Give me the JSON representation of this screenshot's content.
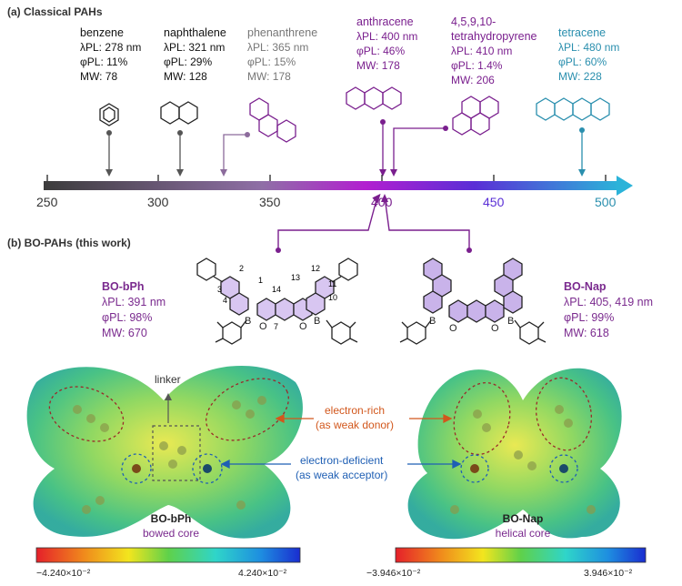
{
  "section_a": {
    "title": "(a) Classical PAHs"
  },
  "section_b": {
    "title": "(b) BO-PAHs (this work)"
  },
  "pahs": [
    {
      "name": "benzene",
      "pl": "λPL: 278 nm",
      "phi": "φPL: 11%",
      "mw": "MW: 78",
      "color": "#111111"
    },
    {
      "name": "naphthalene",
      "pl": "λPL: 321 nm",
      "phi": "φPL: 29%",
      "mw": "MW: 128",
      "color": "#111111"
    },
    {
      "name": "phenanthrene",
      "pl": "λPL: 365 nm",
      "phi": "φPL: 15%",
      "mw": "MW: 178",
      "color": "#777777"
    },
    {
      "name": "anthracene",
      "pl": "λPL: 400 nm",
      "phi": "φPL: 46%",
      "mw": "MW: 178",
      "color": "#7a1f8e"
    },
    {
      "name": "4,5,9,10-",
      "name2": "tetrahydropyrene",
      "pl": "λPL: 410 nm",
      "phi": "φPL: 1.4%",
      "mw": "MW: 206",
      "color": "#7a1f8e"
    },
    {
      "name": "tetracene",
      "pl": "λPL: 480 nm",
      "phi": "φPL: 60%",
      "mw": "MW: 228",
      "color": "#2a8fae"
    }
  ],
  "axis": {
    "ticks": [
      "250",
      "300",
      "350",
      "400",
      "450",
      "500"
    ]
  },
  "bo_pahs": [
    {
      "name": "BO-bPh",
      "pl": "λPL: 391 nm",
      "phi": "φPL: 98%",
      "mw": "MW: 670"
    },
    {
      "name": "BO-Nap",
      "pl": "λPL: 405, 419 nm",
      "phi": "φPL: 99%",
      "mw": "MW: 618"
    }
  ],
  "structure_numbers": [
    "2",
    "1",
    "3",
    "4",
    "14",
    "13",
    "12",
    "11",
    "10",
    "7"
  ],
  "atoms": {
    "boron": "B",
    "oxygen": "O"
  },
  "callouts": {
    "linker": "linker",
    "electron_rich": "electron-rich",
    "electron_rich_sub": "(as weak donor)",
    "electron_deficient": "electron-deficient",
    "electron_deficient_sub": "(as weak acceptor)"
  },
  "maps": [
    {
      "name": "BO-bPh",
      "sub": "bowed core",
      "scale_min": "−4.240×10⁻²",
      "scale_max": "4.240×10⁻²"
    },
    {
      "name": "BO-Nap",
      "sub": "helical core",
      "scale_min": "−3.946×10⁻²",
      "scale_max": "3.946×10⁻²"
    }
  ],
  "colors": {
    "purple": "#7a1f8e",
    "teal": "#2a8fae",
    "orange": "#d2571c",
    "blue": "#1f5fb4",
    "fill": "#c9b3ea"
  }
}
